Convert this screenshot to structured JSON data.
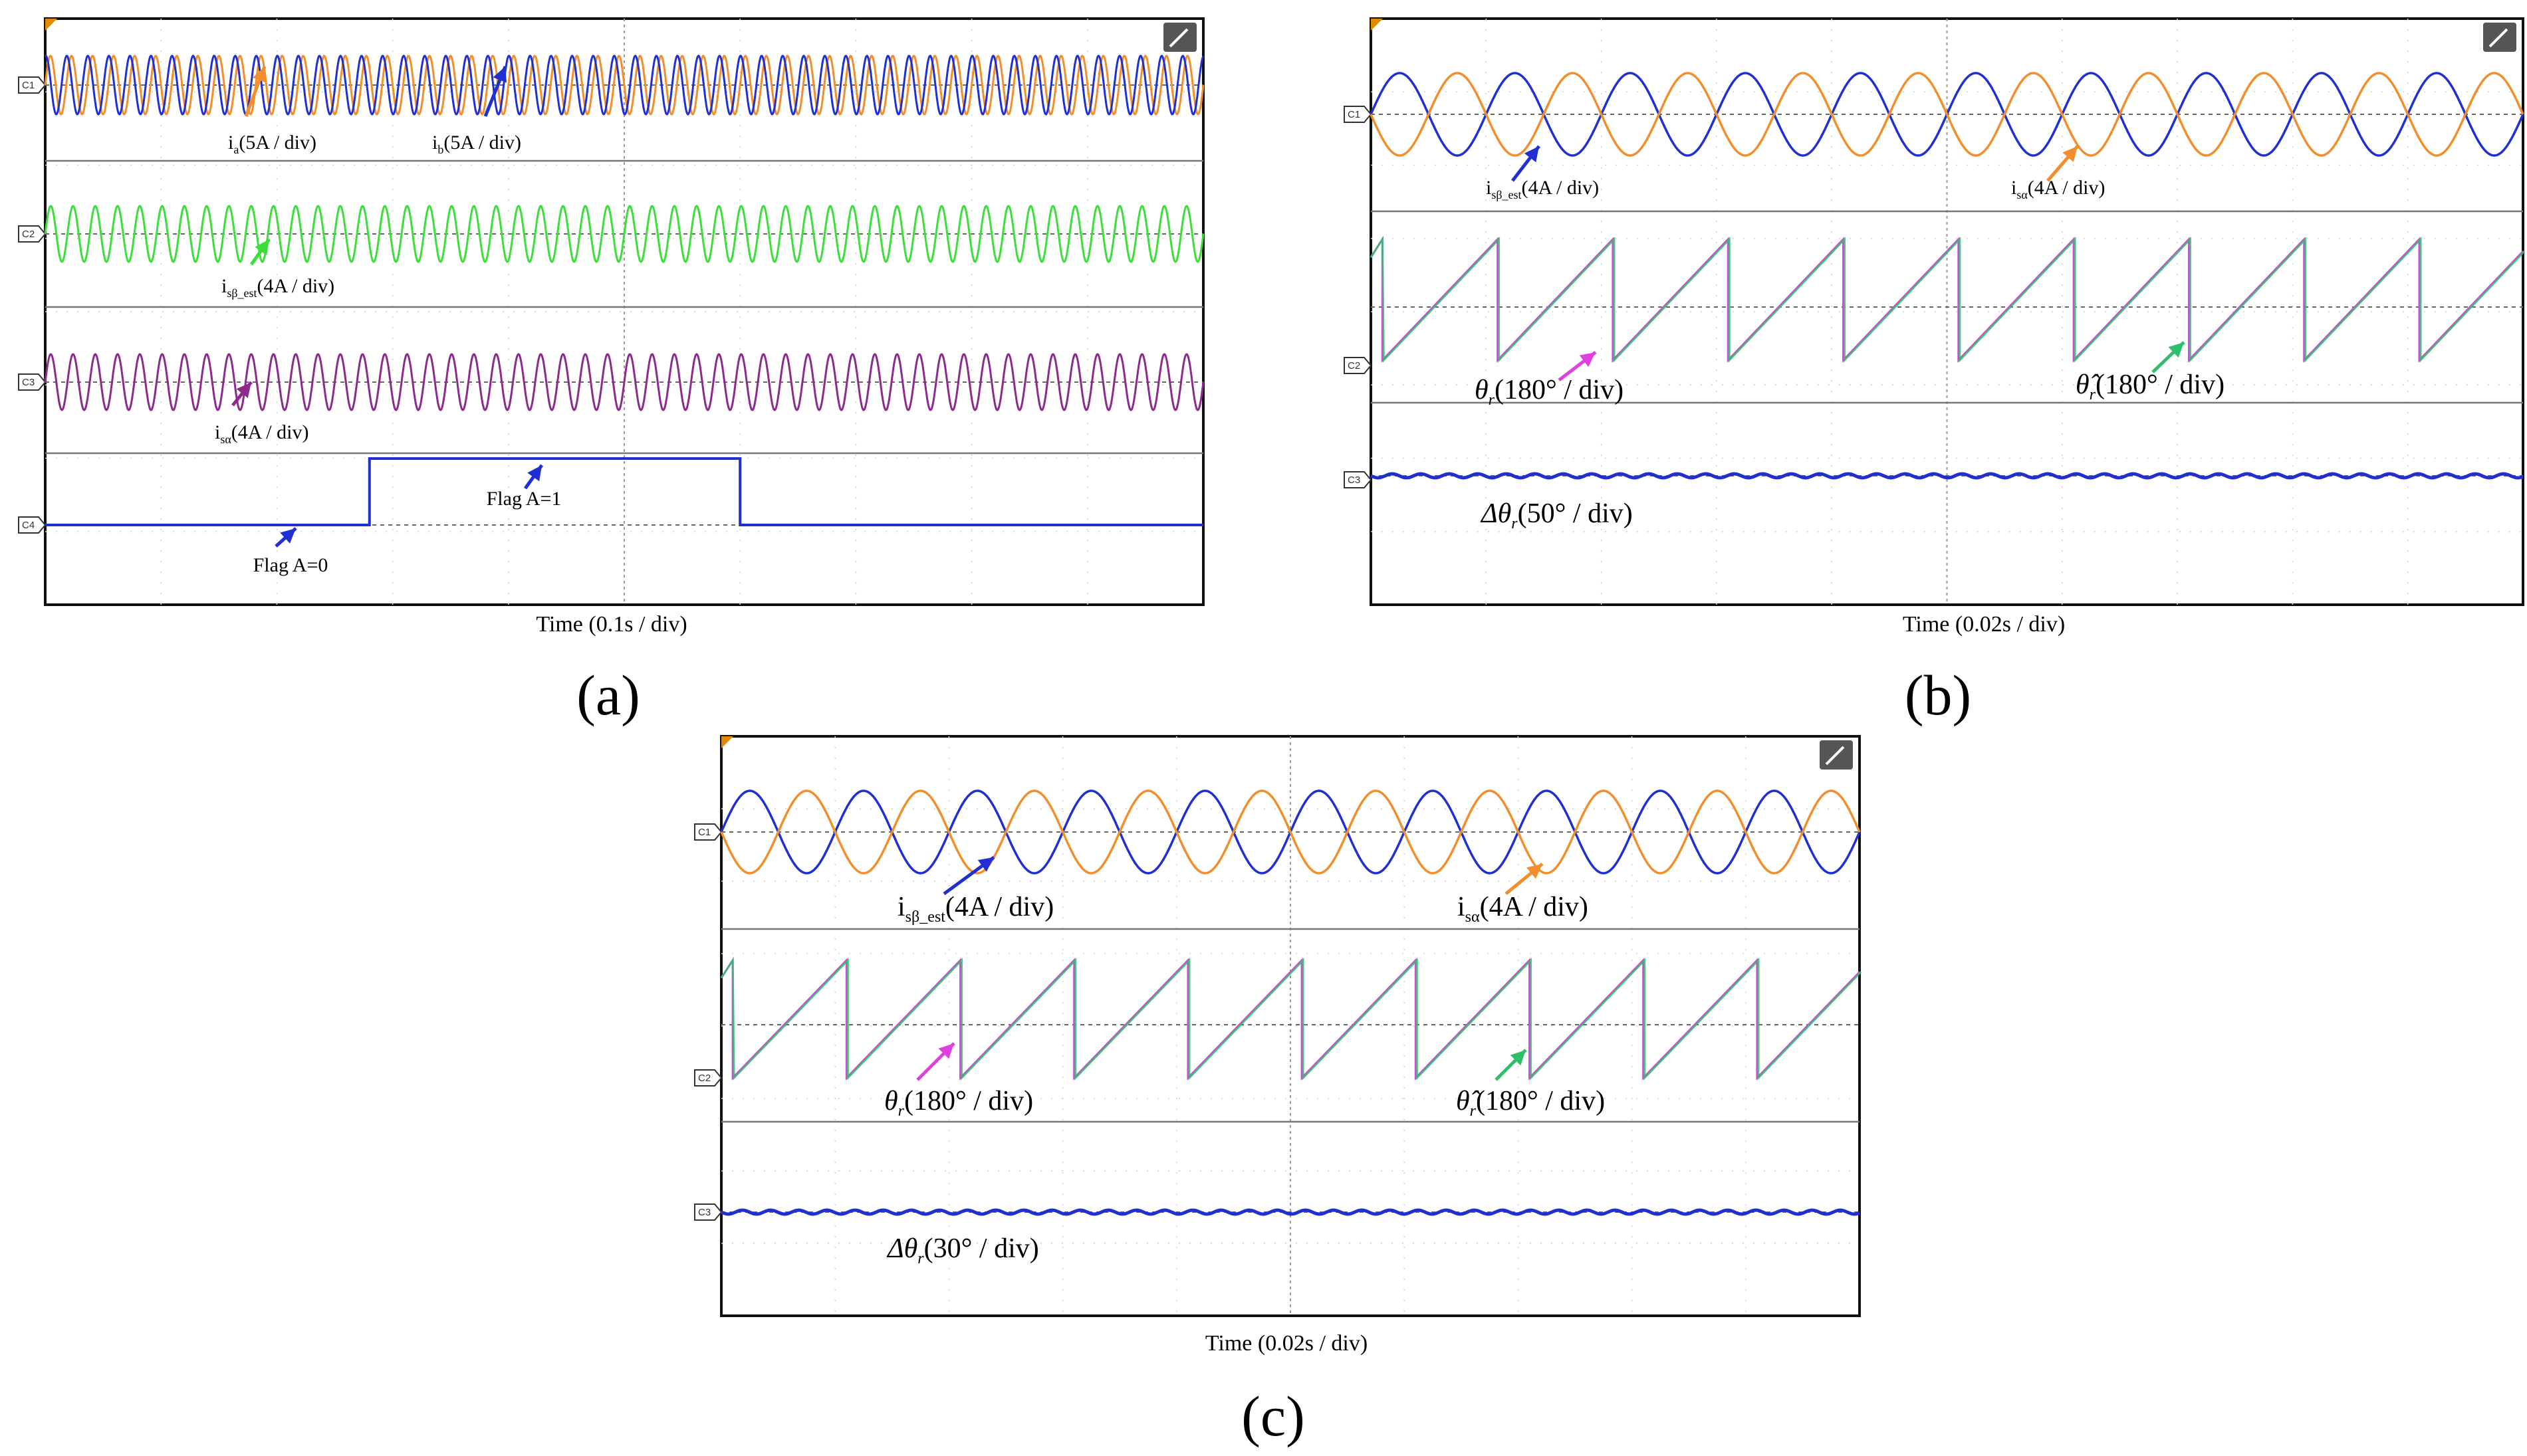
{
  "chart_data": [
    {
      "type": "line",
      "panel_label": "(a)",
      "xlabel": "Time (0.1s / div)",
      "channels": [
        "C1",
        "C2",
        "C3",
        "C4"
      ],
      "series": [
        {
          "name": "i_a (5A / div)",
          "label": "i",
          "sub": "a",
          "tail": "(5A / div)",
          "channel": "C1",
          "color": "#f28e2b",
          "cycles": 55
        },
        {
          "name": "i_b (5A / div)",
          "label": "i",
          "sub": "b",
          "tail": "(5A / div)",
          "channel": "C1",
          "color": "#1f2fd4",
          "cycles": 55
        },
        {
          "name": "i_sβ_est (4A / div)",
          "label": "i",
          "sub": "sβ_est",
          "tail": "(4A / div)",
          "channel": "C2",
          "color": "#3adf3a",
          "cycles": 52
        },
        {
          "name": "i_sα (4A / div)",
          "label": "i",
          "sub": "sα",
          "tail": "(4A / div)",
          "channel": "C3",
          "color": "#8e2a8e",
          "cycles": 52
        },
        {
          "name": "Flag A",
          "channel": "C4",
          "color": "#1f2fd4",
          "segments": [
            {
              "t_div": [
                0,
                2.8
              ],
              "value": 0
            },
            {
              "t_div": [
                2.8,
                6.0
              ],
              "value": 1
            },
            {
              "t_div": [
                6.0,
                10
              ],
              "value": 0
            }
          ]
        }
      ],
      "annotations": [
        "Flag A=1",
        "Flag A=0"
      ]
    },
    {
      "type": "line",
      "panel_label": "(b)",
      "xlabel": "Time (0.02s / div)",
      "channels": [
        "C1",
        "C2",
        "C3"
      ],
      "series": [
        {
          "name": "i_sβ_est (4A / div)",
          "label": "i",
          "sub": "sβ_est",
          "tail": "(4A / div)",
          "channel": "C1",
          "color": "#1f2fd4",
          "cycles": 10
        },
        {
          "name": "i_sα (4A / div)",
          "label": "i",
          "sub": "sα",
          "tail": "(4A / div)",
          "channel": "C1",
          "color": "#f28e2b",
          "cycles": 10
        },
        {
          "name": "θr (180° / div)",
          "label": "θ",
          "sub": "r",
          "tail": "(180° / div)",
          "channel": "C2",
          "color": "#e040e0",
          "teeth": 10
        },
        {
          "name": "θ̂r (180° / div)",
          "label": "θ̂",
          "sub": "r",
          "tail": "(180° / div)",
          "channel": "C2",
          "color": "#2dbf6a",
          "teeth": 10
        },
        {
          "name": "Δθr (50° / div)",
          "label": "Δθ",
          "sub": "r",
          "tail": "(50° / div)",
          "channel": "C3",
          "color": "#1f2fd4",
          "value": 0
        }
      ]
    },
    {
      "type": "line",
      "panel_label": "(c)",
      "xlabel": "Time (0.02s / div)",
      "channels": [
        "C1",
        "C2",
        "C3"
      ],
      "series": [
        {
          "name": "i_sβ_est (4A / div)",
          "label": "i",
          "sub": "sβ_est",
          "tail": "(4A / div)",
          "channel": "C1",
          "color": "#1f2fd4",
          "cycles": 10
        },
        {
          "name": "i_sα (4A / div)",
          "label": "i",
          "sub": "sα",
          "tail": "(4A / div)",
          "channel": "C1",
          "color": "#f28e2b",
          "cycles": 10
        },
        {
          "name": "θr (180° / div)",
          "label": "θ",
          "sub": "r",
          "tail": "(180° / div)",
          "channel": "C2",
          "color": "#e040e0",
          "teeth": 10
        },
        {
          "name": "θ̂r (180° / div)",
          "label": "θ̂",
          "sub": "r",
          "tail": "(180° / div)",
          "channel": "C2",
          "color": "#2dbf6a",
          "teeth": 10
        },
        {
          "name": "Δθr (30° / div)",
          "label": "Δθ",
          "sub": "r",
          "tail": "(30° / div)",
          "channel": "C3",
          "color": "#1f2fd4",
          "value": 0
        }
      ]
    }
  ]
}
